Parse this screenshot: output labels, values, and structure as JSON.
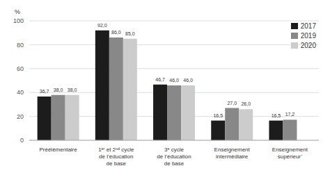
{
  "chart_data": {
    "type": "bar",
    "ylabel": "%",
    "categories": [
      "Préélémentaire",
      "1ᵉʳ et 2ⁿᵈ cycle\nde l’éducation\nde base",
      "3ᵉ cycle\nde l’éducation\nde base",
      "Enseignement\nintermédiaire",
      "Enseignement\nsupérieur’"
    ],
    "series": [
      {
        "name": "2017",
        "color": "#1c1c1c",
        "values": [
          36.7,
          92.0,
          46.7,
          16.5,
          16.5
        ],
        "value_labels": [
          "36,7",
          "92,0",
          "46,7",
          "16,5",
          "16,5"
        ]
      },
      {
        "name": "2019",
        "color": "#888888",
        "values": [
          38.0,
          86.0,
          46.0,
          27.0,
          17.2
        ],
        "value_labels": [
          "38,0",
          "86,0",
          "46,0",
          "27,0",
          "17,2"
        ]
      },
      {
        "name": "2020",
        "color": "#cccccc",
        "values": [
          38.0,
          85.0,
          46.0,
          26.0,
          null
        ],
        "value_labels": [
          "38,0",
          "85,0",
          "46,0",
          "26,0",
          null
        ]
      }
    ],
    "ylim": [
      0,
      100
    ],
    "yticks": [
      0,
      20,
      40,
      60,
      80,
      100
    ],
    "grid": true,
    "legend": "upper right",
    "data_labels": true
  }
}
